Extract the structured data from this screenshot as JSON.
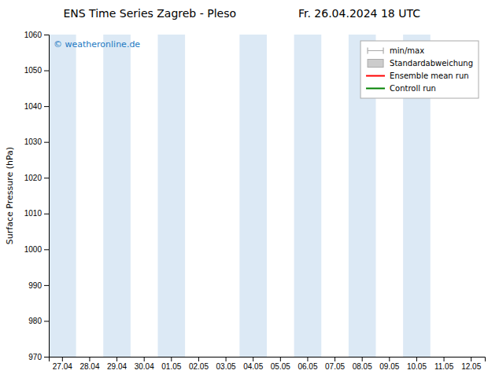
{
  "chart_data": {
    "type": "line",
    "title": "ENS Time Series Zagreb - Pleso",
    "subtitle": "Fr. 26.04.2024 18 UTC",
    "y_label": "Surface Pressure (hPa)",
    "categories": [
      "27.04",
      "28.04",
      "29.04",
      "30.04",
      "01.05",
      "02.05",
      "03.05",
      "04.05",
      "05.05",
      "06.05",
      "07.05",
      "08.05",
      "09.05",
      "10.05",
      "11.05",
      "12.05"
    ],
    "ylim": [
      970,
      1060
    ],
    "yticks": [
      970,
      980,
      990,
      1000,
      1010,
      1020,
      1030,
      1040,
      1050,
      1060
    ],
    "grid": false,
    "legend": "upper right",
    "shaded_bands": [
      "27.04",
      "29.04",
      "01.05",
      "04.05",
      "06.05",
      "08.05",
      "10.05"
    ],
    "shaded_color": "#dce9f5",
    "annotations": [
      {
        "text": "© weatheronline.de",
        "color": "#1a78c2"
      }
    ],
    "series": [
      {
        "name": "min/max",
        "color": "#aaaaaa",
        "type": "errorbar",
        "values": [
          null,
          null,
          null,
          null,
          null,
          null,
          null,
          null,
          null,
          null,
          null,
          null,
          null,
          null,
          null,
          null
        ]
      },
      {
        "name": "Standardabweichung",
        "color": "#cccccc",
        "type": "bar",
        "values": [
          null,
          null,
          null,
          null,
          null,
          null,
          null,
          null,
          null,
          null,
          null,
          null,
          null,
          null,
          null,
          null
        ]
      },
      {
        "name": "Ensemble mean run",
        "color": "#ff0000",
        "type": "line",
        "values": [
          null,
          null,
          null,
          null,
          null,
          null,
          null,
          null,
          null,
          null,
          null,
          null,
          null,
          null,
          null,
          null
        ]
      },
      {
        "name": "Controll run",
        "color": "#008000",
        "type": "line",
        "values": [
          null,
          null,
          null,
          null,
          null,
          null,
          null,
          null,
          null,
          null,
          null,
          null,
          null,
          null,
          null,
          null
        ]
      }
    ]
  }
}
